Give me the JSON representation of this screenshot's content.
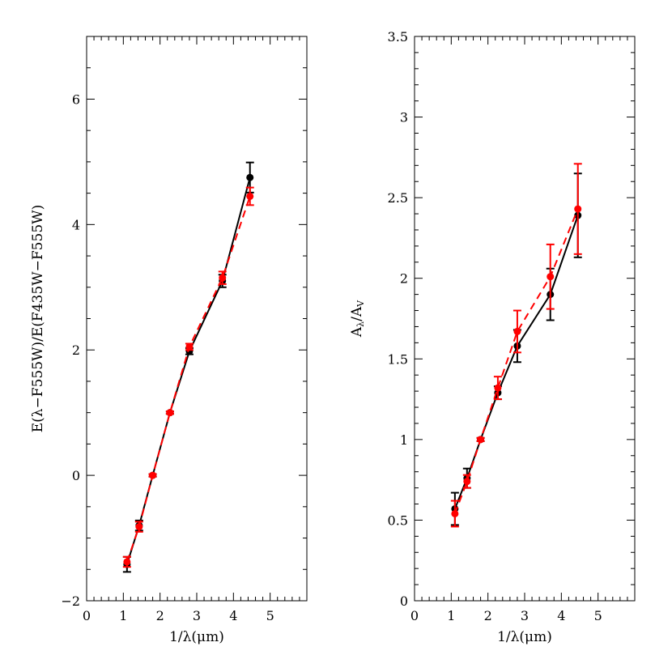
{
  "chart_data": [
    {
      "type": "line",
      "title": "",
      "xlabel": "1/λ(μm)",
      "ylabel": "E(λ−F555W)/E(F435W−F555W)",
      "xlim": [
        0,
        6
      ],
      "ylim": [
        -2,
        7
      ],
      "xticks": [
        0,
        1,
        2,
        3,
        4,
        5
      ],
      "yticks": [
        -2,
        0,
        2,
        4,
        6
      ],
      "grid": false,
      "legend": "none",
      "series": [
        {
          "color": "#000000",
          "line": "solid",
          "x": [
            1.1,
            1.43,
            1.8,
            2.27,
            2.8,
            3.7,
            4.45
          ],
          "y": [
            -1.42,
            -0.8,
            0.0,
            1.0,
            1.98,
            3.1,
            4.75
          ],
          "err": [
            0.12,
            0.08,
            0.02,
            0.02,
            0.05,
            0.1,
            0.24
          ]
        },
        {
          "color": "#ff0000",
          "line": "dashed",
          "x": [
            1.1,
            1.43,
            1.8,
            2.27,
            2.8,
            3.7,
            4.45
          ],
          "y": [
            -1.38,
            -0.82,
            0.0,
            1.0,
            2.05,
            3.15,
            4.45
          ],
          "err": [
            0.08,
            0.08,
            0.02,
            0.02,
            0.05,
            0.1,
            0.14
          ]
        }
      ]
    },
    {
      "type": "line",
      "title": "",
      "xlabel": "1/λ(μm)",
      "ylabel": "Aλ/AV",
      "ylabel_main": "A",
      "ylabel_sub1": "λ",
      "ylabel_mid": "/A",
      "ylabel_sub2": "V",
      "xlim": [
        0,
        6
      ],
      "ylim": [
        0,
        3.5
      ],
      "xticks": [
        0,
        1,
        2,
        3,
        4,
        5
      ],
      "yticks": [
        0,
        0.5,
        1,
        1.5,
        2,
        2.5,
        3,
        3.5
      ],
      "grid": false,
      "legend": "none",
      "series": [
        {
          "color": "#000000",
          "line": "solid",
          "x": [
            1.1,
            1.43,
            1.8,
            2.27,
            2.8,
            3.7,
            4.45
          ],
          "y": [
            0.57,
            0.76,
            1.0,
            1.29,
            1.58,
            1.9,
            2.39
          ],
          "err": [
            0.1,
            0.06,
            0.01,
            0.04,
            0.1,
            0.16,
            0.26
          ]
        },
        {
          "color": "#ff0000",
          "line": "dashed",
          "x": [
            1.1,
            1.43,
            1.8,
            2.27,
            2.8,
            3.7,
            4.45
          ],
          "y": [
            0.54,
            0.74,
            1.0,
            1.32,
            1.67,
            2.01,
            2.43
          ],
          "err": [
            0.08,
            0.04,
            0.01,
            0.07,
            0.13,
            0.2,
            0.28
          ]
        }
      ]
    }
  ]
}
